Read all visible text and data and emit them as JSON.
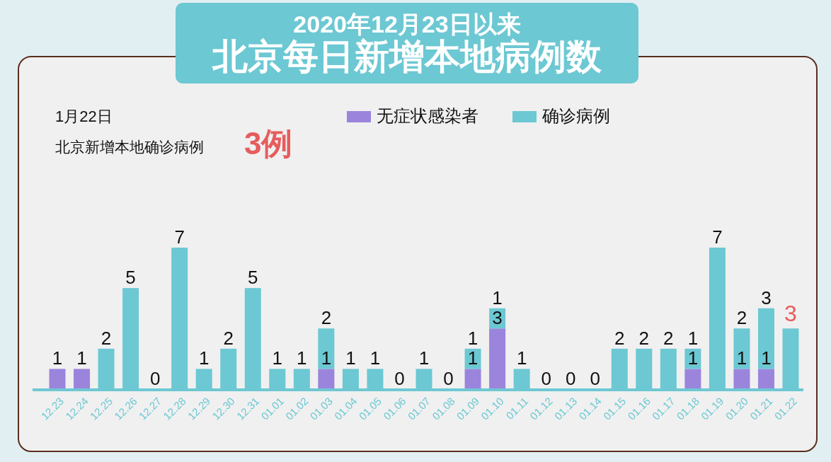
{
  "chart_data": {
    "type": "bar",
    "stacked": true,
    "title": "2020年12月23日以来",
    "subtitle": "北京每日新增本地病例数",
    "annotations": [
      "1月22日",
      "北京新增本地确诊病例",
      "3例",
      {
        "text": "3",
        "x": "01.22",
        "y": 3
      }
    ],
    "categories": [
      "12.23",
      "12.24",
      "12.25",
      "12.26",
      "12.27",
      "12.28",
      "12.29",
      "12.30",
      "12.31",
      "01.01",
      "01.02",
      "01.03",
      "01.04",
      "01.05",
      "01.06",
      "01.07",
      "01.08",
      "01.09",
      "01.10",
      "01.11",
      "01.12",
      "01.13",
      "01.14",
      "01.15",
      "01.16",
      "01.17",
      "01.18",
      "01.19",
      "01.20",
      "01.21",
      "01.22"
    ],
    "series": [
      {
        "name": "无症状感染者",
        "color": "#9b84dc",
        "values": [
          1,
          1,
          0,
          0,
          0,
          0,
          0,
          0,
          0,
          0,
          0,
          1,
          0,
          0,
          0,
          0,
          0,
          1,
          3,
          0,
          0,
          0,
          0,
          0,
          0,
          0,
          1,
          0,
          1,
          1,
          0
        ],
        "value_labels": [
          "1",
          "1",
          null,
          null,
          null,
          null,
          null,
          null,
          null,
          null,
          null,
          "1",
          null,
          null,
          null,
          null,
          null,
          "1",
          "3",
          null,
          null,
          null,
          null,
          null,
          null,
          null,
          "1",
          null,
          "1",
          "1",
          null
        ]
      },
      {
        "name": "确诊病例",
        "color": "#6cc8d3",
        "values": [
          0,
          0,
          2,
          5,
          0,
          7,
          1,
          2,
          5,
          1,
          1,
          2,
          1,
          1,
          0,
          1,
          0,
          1,
          1,
          1,
          0,
          0,
          0,
          2,
          2,
          2,
          1,
          7,
          2,
          3,
          3
        ],
        "value_labels": [
          null,
          null,
          "2",
          "5",
          "0",
          "7",
          "1",
          "2",
          "5",
          "1",
          "1",
          "2",
          "1",
          "1",
          "0",
          "1",
          "0",
          "1",
          "1",
          "1",
          "0",
          "0",
          "0",
          "2",
          "2",
          "2",
          "1",
          "7",
          "2",
          "3",
          null
        ]
      }
    ],
    "legend": "top"
  }
}
